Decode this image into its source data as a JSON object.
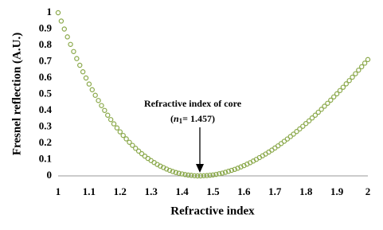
{
  "chart_data": {
    "type": "scatter",
    "x_label": "Refractive index",
    "y_label": "Fresnel reflection (A.U.)",
    "annotation": {
      "text": "Refractive index of core",
      "open": "(",
      "symbol": "n",
      "subscript": "1",
      "value_text": "= 1.457)"
    },
    "color": "#8aa84a",
    "x": [
      1,
      1.01,
      1.02,
      1.03,
      1.04,
      1.05,
      1.06,
      1.07,
      1.08,
      1.09,
      1.1,
      1.11,
      1.12,
      1.13,
      1.14,
      1.15,
      1.16,
      1.17,
      1.18,
      1.19,
      1.2,
      1.21,
      1.22,
      1.23,
      1.24,
      1.25,
      1.26,
      1.27,
      1.28,
      1.29,
      1.3,
      1.31,
      1.32,
      1.33,
      1.34,
      1.35,
      1.36,
      1.37,
      1.38,
      1.39,
      1.4,
      1.41,
      1.42,
      1.43,
      1.44,
      1.45,
      1.46,
      1.47,
      1.48,
      1.49,
      1.5,
      1.51,
      1.52,
      1.53,
      1.54,
      1.55,
      1.56,
      1.57,
      1.58,
      1.59,
      1.6,
      1.61,
      1.62,
      1.63,
      1.64,
      1.65,
      1.66,
      1.67,
      1.68,
      1.69,
      1.7,
      1.71,
      1.72,
      1.73,
      1.74,
      1.75,
      1.76,
      1.77,
      1.78,
      1.79,
      1.8,
      1.81,
      1.82,
      1.83,
      1.84,
      1.85,
      1.86,
      1.87,
      1.88,
      1.89,
      1.9,
      1.91,
      1.92,
      1.93,
      1.94,
      1.95,
      1.96,
      1.97,
      1.98,
      1.99,
      2
    ],
    "values": [
      1,
      0.949,
      0.9,
      0.852,
      0.806,
      0.762,
      0.719,
      0.678,
      0.638,
      0.6,
      0.563,
      0.528,
      0.494,
      0.462,
      0.431,
      0.401,
      0.372,
      0.345,
      0.319,
      0.294,
      0.27,
      0.248,
      0.227,
      0.206,
      0.187,
      0.169,
      0.152,
      0.136,
      0.121,
      0.107,
      0.094,
      0.082,
      0.07,
      0.06,
      0.051,
      0.042,
      0.034,
      0.027,
      0.021,
      0.016,
      0.012,
      0.008,
      0.005,
      0.003,
      0.001,
      0,
      0,
      0.001,
      0.002,
      0.004,
      0.006,
      0.009,
      0.013,
      0.017,
      0.022,
      0.028,
      0.034,
      0.04,
      0.047,
      0.055,
      0.063,
      0.072,
      0.081,
      0.091,
      0.101,
      0.112,
      0.123,
      0.134,
      0.146,
      0.158,
      0.171,
      0.184,
      0.198,
      0.212,
      0.226,
      0.241,
      0.256,
      0.272,
      0.288,
      0.304,
      0.321,
      0.337,
      0.355,
      0.372,
      0.39,
      0.408,
      0.427,
      0.445,
      0.464,
      0.484,
      0.503,
      0.523,
      0.543,
      0.564,
      0.584,
      0.605,
      0.626,
      0.648,
      0.669,
      0.691,
      0.713
    ],
    "xlim": [
      1,
      2
    ],
    "xticks": [
      1,
      1.1,
      1.2,
      1.3,
      1.4,
      1.5,
      1.6,
      1.7,
      1.8,
      1.9,
      2
    ],
    "ylim": [
      0,
      1
    ],
    "yticks": [
      0,
      0.1,
      0.2,
      0.3,
      0.4,
      0.5,
      0.6,
      0.7,
      0.8,
      0.9,
      1
    ],
    "grid": false
  }
}
